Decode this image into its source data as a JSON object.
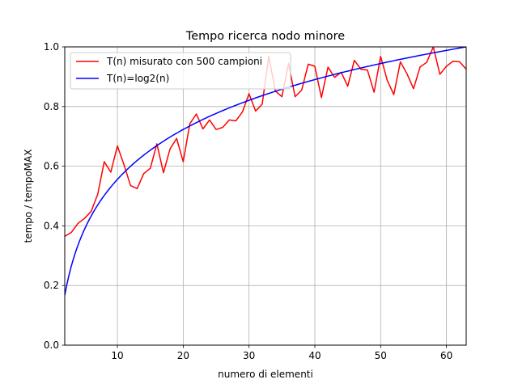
{
  "chart_data": {
    "type": "line",
    "title": "Tempo ricerca nodo minore",
    "xlabel": "numero di elementi",
    "ylabel": "tempo / tempoMAX",
    "xlim": [
      2,
      63
    ],
    "ylim": [
      0.0,
      1.0
    ],
    "xticks": [
      "10",
      "20",
      "30",
      "40",
      "50",
      "60"
    ],
    "yticks": [
      "0.0",
      "0.2",
      "0.4",
      "0.6",
      "0.8",
      "1.0"
    ],
    "grid": true,
    "legend_position": "top-left",
    "series": [
      {
        "name": "T(n) misurato con 500 campioni",
        "color": "#ff0000",
        "x": [
          2,
          3,
          4,
          5,
          6,
          7,
          8,
          9,
          10,
          11,
          12,
          13,
          14,
          15,
          16,
          17,
          18,
          19,
          20,
          21,
          22,
          23,
          24,
          25,
          26,
          27,
          28,
          29,
          30,
          31,
          32,
          33,
          34,
          35,
          36,
          37,
          38,
          39,
          40,
          41,
          42,
          43,
          44,
          45,
          46,
          47,
          48,
          49,
          50,
          51,
          52,
          53,
          54,
          55,
          56,
          57,
          58,
          59,
          60,
          61,
          62,
          63
        ],
        "y": [
          0.365,
          0.378,
          0.408,
          0.425,
          0.448,
          0.505,
          0.615,
          0.58,
          0.668,
          0.605,
          0.535,
          0.525,
          0.575,
          0.593,
          0.675,
          0.578,
          0.658,
          0.693,
          0.615,
          0.742,
          0.775,
          0.725,
          0.755,
          0.723,
          0.73,
          0.755,
          0.752,
          0.782,
          0.843,
          0.785,
          0.808,
          0.968,
          0.852,
          0.833,
          0.945,
          0.833,
          0.855,
          0.942,
          0.935,
          0.83,
          0.932,
          0.898,
          0.915,
          0.868,
          0.955,
          0.925,
          0.922,
          0.848,
          0.968,
          0.888,
          0.84,
          0.95,
          0.91,
          0.86,
          0.933,
          0.948,
          1.0,
          0.908,
          0.935,
          0.952,
          0.95,
          0.925
        ]
      },
      {
        "name": "T(n)=log2(n)",
        "color": "#0000ff",
        "function": "log2(n)/log2(63)",
        "x_range": [
          2,
          63
        ]
      }
    ]
  }
}
